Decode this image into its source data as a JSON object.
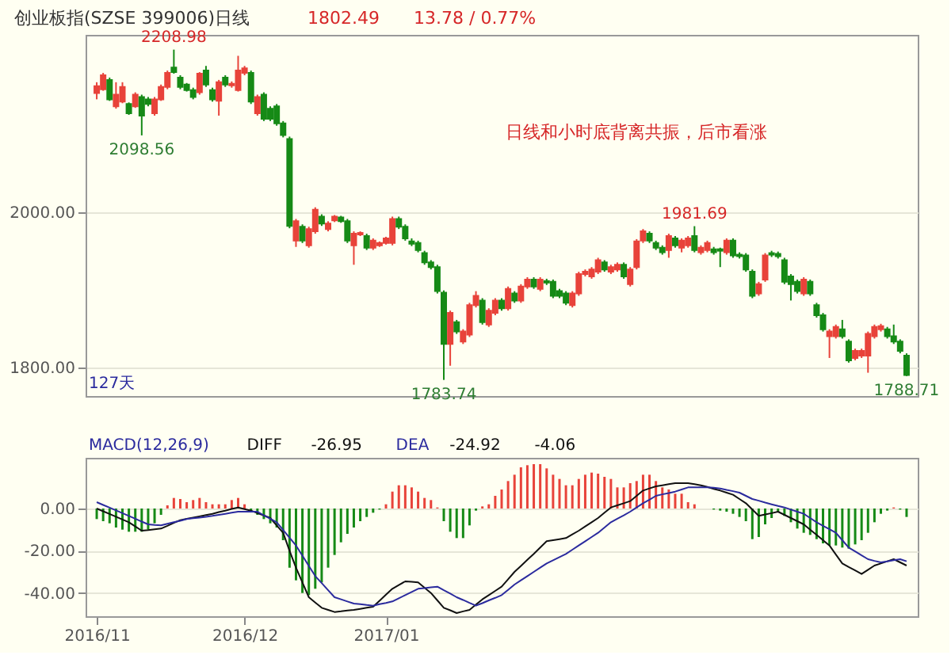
{
  "chart_data": [
    {
      "type": "candlestick",
      "title": "创业板指(SZSE 399006)日线",
      "categories": [
        null,
        null,
        null,
        null,
        null,
        null,
        null,
        null,
        null,
        null,
        null,
        null,
        null,
        null,
        null,
        null,
        null,
        null,
        null,
        null,
        null,
        null,
        null,
        null,
        null,
        null,
        null,
        null,
        null,
        null,
        null,
        null,
        null,
        null,
        null,
        null,
        null,
        null,
        null,
        null,
        null,
        null,
        null,
        null,
        null,
        null,
        null,
        null,
        null,
        null,
        null,
        null,
        null,
        null,
        null,
        null,
        null,
        null,
        null,
        null,
        null,
        null,
        null,
        null,
        null,
        null,
        null,
        null,
        null,
        null,
        null,
        null,
        null,
        null,
        null,
        null,
        null,
        null,
        null,
        null,
        null,
        null,
        null,
        null,
        null,
        null,
        null,
        null,
        null,
        null,
        null,
        null,
        null,
        null,
        null,
        null,
        null,
        null,
        null,
        null,
        null,
        null,
        null,
        null,
        null,
        null,
        null,
        null,
        null,
        null,
        null,
        null,
        null,
        null,
        null,
        null,
        null,
        null,
        null,
        null,
        null,
        null,
        null,
        null,
        null,
        null,
        null
      ],
      "ohlc": [
        [
          2153,
          2167,
          2145,
          2162
        ],
        [
          2158,
          2179,
          2156,
          2176
        ],
        [
          2170,
          2173,
          2143,
          2145
        ],
        [
          2136,
          2167,
          2133,
          2151
        ],
        [
          2142,
          2167,
          2140,
          2161
        ],
        [
          2139,
          2141,
          2125,
          2127
        ],
        [
          2136,
          2154,
          2134,
          2151
        ],
        [
          2148,
          2151,
          2098.56,
          2124
        ],
        [
          2145,
          2148,
          2136,
          2139
        ],
        [
          2127,
          2148,
          2124,
          2145
        ],
        [
          2145,
          2164,
          2143,
          2161
        ],
        [
          2161,
          2182,
          2158,
          2179
        ],
        [
          2186,
          2208.98,
          2178,
          2180
        ],
        [
          2173,
          2176,
          2158,
          2161
        ],
        [
          2164,
          2166,
          2155,
          2157
        ],
        [
          2157,
          2160,
          2145,
          2148
        ],
        [
          2154,
          2180,
          2151,
          2178
        ],
        [
          2182,
          2188,
          2161,
          2164
        ],
        [
          2157,
          2160,
          2142,
          2145
        ],
        [
          2143,
          2170,
          2124,
          2167
        ],
        [
          2173,
          2176,
          2161,
          2164
        ],
        [
          2163,
          2168,
          2160,
          2165
        ],
        [
          2157,
          2201,
          2155,
          2182
        ],
        [
          2179,
          2188,
          2176,
          2185
        ],
        [
          2179,
          2182,
          2139,
          2142
        ],
        [
          2127,
          2151,
          2124,
          2148
        ],
        [
          2151,
          2154,
          2117,
          2120
        ],
        [
          2133,
          2136,
          2117,
          2120
        ],
        [
          2136,
          2139,
          2111,
          2114
        ],
        [
          2114,
          2117,
          2096,
          2099
        ],
        [
          2094,
          2097,
          1979,
          1982
        ],
        [
          1963,
          1991,
          1955,
          1988
        ],
        [
          1981,
          1984,
          1960,
          1963
        ],
        [
          1957,
          1981,
          1954,
          1978
        ],
        [
          1975,
          2006,
          1972,
          2003
        ],
        [
          1994,
          1997,
          1982,
          1985
        ],
        [
          1978,
          1988,
          1975,
          1985
        ],
        [
          1989,
          1996,
          1987,
          1994
        ],
        [
          1993,
          1995,
          1986,
          1988
        ],
        [
          1988,
          1991,
          1960,
          1963
        ],
        [
          1957,
          1975,
          1932,
          1972
        ],
        [
          1971,
          1975,
          1969,
          1973
        ],
        [
          1969,
          1972,
          1951,
          1954
        ],
        [
          1954,
          1966,
          1951,
          1963
        ],
        [
          1957,
          1962,
          1955,
          1960
        ],
        [
          1960,
          1968,
          1958,
          1966
        ],
        [
          1960,
          1994,
          1957,
          1991
        ],
        [
          1991,
          1994,
          1978,
          1981
        ],
        [
          1981,
          1984,
          1963,
          1966
        ],
        [
          1962,
          1966,
          1956,
          1959
        ],
        [
          1960,
          1963,
          1948,
          1951
        ],
        [
          1947,
          1950,
          1932,
          1935
        ],
        [
          1935,
          1938,
          1926,
          1929
        ],
        [
          1929,
          1932,
          1895,
          1898
        ],
        [
          1896,
          1899,
          1783.74,
          1830
        ],
        [
          1830,
          1873,
          1802,
          1870
        ],
        [
          1858,
          1861,
          1843,
          1846
        ],
        [
          1833,
          1849,
          1830,
          1846
        ],
        [
          1842,
          1883,
          1839,
          1880
        ],
        [
          1880,
          1898,
          1877,
          1892
        ],
        [
          1886,
          1889,
          1855,
          1858
        ],
        [
          1855,
          1876,
          1852,
          1873
        ],
        [
          1870,
          1889,
          1867,
          1886
        ],
        [
          1886,
          1889,
          1873,
          1876
        ],
        [
          1876,
          1904,
          1873,
          1901
        ],
        [
          1895,
          1898,
          1883,
          1886
        ],
        [
          1886,
          1907,
          1883,
          1904
        ],
        [
          1904,
          1916,
          1901,
          1913
        ],
        [
          1913,
          1916,
          1901,
          1904
        ],
        [
          1901,
          1916,
          1898,
          1913
        ],
        [
          1911,
          1914,
          1906,
          1909
        ],
        [
          1910,
          1913,
          1889,
          1892
        ],
        [
          1898,
          1901,
          1889,
          1892
        ],
        [
          1895,
          1898,
          1880,
          1883
        ],
        [
          1880,
          1898,
          1877,
          1895
        ],
        [
          1895,
          1923,
          1892,
          1920
        ],
        [
          1920,
          1926,
          1917,
          1923
        ],
        [
          1917,
          1929,
          1914,
          1926
        ],
        [
          1923,
          1941,
          1920,
          1938
        ],
        [
          1935,
          1938,
          1923,
          1926
        ],
        [
          1923,
          1932,
          1920,
          1929
        ],
        [
          1926,
          1935,
          1923,
          1932
        ],
        [
          1932,
          1935,
          1914,
          1917
        ],
        [
          1907,
          1929,
          1904,
          1926
        ],
        [
          1929,
          1965,
          1926,
          1962
        ],
        [
          1963,
          1978,
          1960,
          1975
        ],
        [
          1972,
          1975,
          1960,
          1963
        ],
        [
          1960,
          1963,
          1951,
          1954
        ],
        [
          1954,
          1957,
          1945,
          1948
        ],
        [
          1951,
          1972,
          1941,
          1969
        ],
        [
          1966,
          1969,
          1954,
          1957
        ],
        [
          1954,
          1966,
          1948,
          1963
        ],
        [
          1957,
          1969,
          1954,
          1966
        ],
        [
          1969,
          1981.69,
          1948,
          1951
        ],
        [
          1948,
          1957,
          1945,
          1954
        ],
        [
          1951,
          1963,
          1948,
          1960
        ],
        [
          1952,
          1955,
          1945,
          1948
        ],
        [
          1952,
          1954,
          1929,
          1950
        ],
        [
          1948,
          1966,
          1945,
          1963
        ],
        [
          1963,
          1966,
          1941,
          1944
        ],
        [
          1945,
          1948,
          1940,
          1943
        ],
        [
          1944,
          1947,
          1923,
          1926
        ],
        [
          1923,
          1926,
          1889,
          1892
        ],
        [
          1895,
          1910,
          1892,
          1907
        ],
        [
          1913,
          1947,
          1910,
          1944
        ],
        [
          1947,
          1950,
          1942,
          1945
        ],
        [
          1946,
          1949,
          1940,
          1943
        ],
        [
          1938,
          1941,
          1907,
          1910
        ],
        [
          1917,
          1920,
          1886,
          1907
        ],
        [
          1910,
          1913,
          1895,
          1898
        ],
        [
          1895,
          1916,
          1892,
          1913
        ],
        [
          1910,
          1913,
          1892,
          1895
        ],
        [
          1880,
          1883,
          1864,
          1867
        ],
        [
          1867,
          1870,
          1846,
          1849
        ],
        [
          1840,
          1849,
          1812,
          1846
        ],
        [
          1840,
          1855,
          1837,
          1852
        ],
        [
          1849,
          1861,
          1837,
          1840
        ],
        [
          1833,
          1836,
          1806,
          1809
        ],
        [
          1812,
          1824,
          1809,
          1821
        ],
        [
          1815,
          1824,
          1812,
          1821
        ],
        [
          1815,
          1846,
          1793,
          1843
        ],
        [
          1840,
          1855,
          1837,
          1852
        ],
        [
          1849,
          1856,
          1846,
          1853
        ],
        [
          1849,
          1852,
          1837,
          1840
        ],
        [
          1840,
          1855,
          1830,
          1833
        ],
        [
          1833,
          1836,
          1818,
          1821
        ],
        [
          1815,
          1818,
          1788.71,
          1790
        ]
      ],
      "colors": [
        "#e8433a",
        "#e8433a",
        "#168a16",
        "#e8433a",
        "#e8433a",
        "#168a16",
        "#e8433a",
        "#168a16",
        "#168a16",
        "#e8433a",
        "#e8433a",
        "#e8433a",
        "#168a16",
        "#168a16",
        "#168a16",
        "#168a16",
        "#e8433a",
        "#168a16",
        "#168a16",
        "#e8433a",
        "#168a16",
        "#e8433a",
        "#e8433a",
        "#e8433a",
        "#168a16",
        "#e8433a",
        "#168a16",
        "#168a16",
        "#168a16",
        "#168a16",
        "#168a16",
        "#e8433a",
        "#168a16",
        "#e8433a",
        "#e8433a",
        "#168a16",
        "#e8433a",
        "#e8433a",
        "#168a16",
        "#168a16",
        "#e8433a",
        "#e8433a",
        "#168a16",
        "#e8433a",
        "#e8433a",
        "#e8433a",
        "#e8433a",
        "#168a16",
        "#168a16",
        "#168a16",
        "#168a16",
        "#168a16",
        "#168a16",
        "#168a16",
        "#168a16",
        "#e8433a",
        "#168a16",
        "#e8433a",
        "#e8433a",
        "#e8433a",
        "#168a16",
        "#e8433a",
        "#e8433a",
        "#168a16",
        "#e8433a",
        "#168a16",
        "#e8433a",
        "#e8433a",
        "#168a16",
        "#e8433a",
        "#168a16",
        "#168a16",
        "#168a16",
        "#168a16",
        "#e8433a",
        "#e8433a",
        "#e8433a",
        "#e8433a",
        "#e8433a",
        "#168a16",
        "#e8433a",
        "#e8433a",
        "#168a16",
        "#e8433a",
        "#e8433a",
        "#e8433a",
        "#168a16",
        "#168a16",
        "#168a16",
        "#e8433a",
        "#168a16",
        "#e8433a",
        "#e8433a",
        "#168a16",
        "#e8433a",
        "#e8433a",
        "#168a16",
        "#168a16",
        "#e8433a",
        "#168a16",
        "#168a16",
        "#168a16",
        "#168a16",
        "#e8433a",
        "#e8433a",
        "#168a16",
        "#168a16",
        "#168a16",
        "#168a16",
        "#168a16",
        "#e8433a",
        "#168a16",
        "#168a16",
        "#168a16",
        "#e8433a",
        "#e8433a",
        "#168a16",
        "#168a16",
        "#e8433a",
        "#e8433a",
        "#e8433a",
        "#e8433a",
        "#e8433a",
        "#168a16",
        "#168a16",
        "#168a16",
        "#168a16"
      ],
      "ylim": [
        1763,
        2228
      ],
      "yticks": [
        {
          "value": 1800,
          "label": "1800.00"
        },
        {
          "value": 2000,
          "label": "2000.00"
        }
      ],
      "grid": "y",
      "tick_labels": "y",
      "annotations": [
        {
          "text": "2208.98",
          "y": 2208.98
        },
        {
          "text": "2098.56",
          "y": 2098.56
        },
        {
          "text": "1783.74",
          "y": 1783.74
        },
        {
          "text": "1981.69",
          "y": 1981.69
        },
        {
          "text": "1788.71",
          "y": 1788.71
        },
        "1802.49",
        "13.78 / 0.77%",
        "日线和小时底背离共振，后市看涨",
        "127天"
      ]
    },
    {
      "type": "bar",
      "categories": [
        "2016/11",
        null,
        null,
        null,
        null,
        null,
        null,
        null,
        null,
        null,
        null,
        null,
        null,
        null,
        null,
        null,
        null,
        null,
        null,
        null,
        null,
        null,
        null,
        "2016/12",
        null,
        null,
        null,
        null,
        null,
        null,
        null,
        null,
        null,
        null,
        null,
        null,
        null,
        null,
        null,
        null,
        null,
        null,
        null,
        null,
        null,
        "2017/01",
        null,
        null,
        null,
        null,
        null,
        null,
        null,
        null,
        null,
        null,
        null,
        null,
        null,
        null,
        null,
        null,
        null,
        null,
        null,
        null,
        null,
        null,
        null,
        null,
        null,
        null,
        null,
        null,
        null,
        null,
        null,
        null,
        null,
        null,
        null,
        null,
        null,
        null,
        null,
        null,
        null,
        null,
        null,
        null,
        null,
        null,
        null,
        null,
        null,
        null,
        null,
        null,
        null,
        null,
        null,
        null,
        null,
        null,
        null,
        null,
        null,
        null,
        null,
        null,
        null,
        null,
        null,
        null,
        null,
        null,
        null,
        null,
        null,
        null,
        null,
        null,
        null,
        null,
        null,
        null,
        null
      ],
      "series": [
        {
          "type": "bar",
          "values": [
            -5,
            -6,
            -7,
            -9,
            -10,
            -11,
            -11,
            -11,
            -10,
            -7,
            -3,
            1.5,
            5,
            4.5,
            3,
            4,
            5,
            3,
            2,
            2,
            2,
            4,
            5,
            2,
            -1,
            -3,
            -5,
            -7,
            -9,
            -15,
            -28,
            -34,
            -40,
            -41,
            -38,
            -35,
            -28,
            -22,
            -16,
            -12,
            -9,
            -6,
            -4,
            -2,
            -0.5,
            2,
            8,
            11,
            11,
            10,
            8,
            5,
            4,
            0.5,
            -6,
            -11,
            -14,
            -14,
            -8,
            -1,
            1,
            2,
            6,
            9,
            13,
            16,
            19.5,
            20.5,
            21,
            21,
            19,
            16,
            14,
            11,
            11,
            14,
            16,
            17,
            16.5,
            15,
            14,
            10,
            10,
            12,
            13,
            16,
            16,
            13,
            10,
            9,
            7,
            7,
            3,
            2,
            null,
            null,
            -0.5,
            -1,
            -1.5,
            -2.5,
            -4,
            -6,
            -14.5,
            -13.5,
            -7.5,
            -4.5,
            -1.5,
            -3.5,
            -6.5,
            -9.5,
            -11.5,
            -12.5,
            -14.5,
            -16.5,
            -17.5,
            -17.5,
            -18.5,
            -19,
            -17,
            -15,
            -11.5,
            -6.5,
            -2.5,
            -1,
            0.5,
            -0.5,
            -4
          ],
          "colors": [
            "#168a16",
            "#168a16",
            "#168a16",
            "#168a16",
            "#168a16",
            "#168a16",
            "#168a16",
            "#168a16",
            "#168a16",
            "#168a16",
            "#168a16",
            "#e8433a",
            "#e8433a",
            "#e8433a",
            "#e8433a",
            "#e8433a",
            "#e8433a",
            "#e8433a",
            "#e8433a",
            "#e8433a",
            "#e8433a",
            "#e8433a",
            "#e8433a",
            "#e8433a",
            "#168a16",
            "#168a16",
            "#168a16",
            "#168a16",
            "#168a16",
            "#168a16",
            "#168a16",
            "#168a16",
            "#168a16",
            "#168a16",
            "#168a16",
            "#168a16",
            "#168a16",
            "#168a16",
            "#168a16",
            "#168a16",
            "#168a16",
            "#168a16",
            "#168a16",
            "#168a16",
            "#168a16",
            "#e8433a",
            "#e8433a",
            "#e8433a",
            "#e8433a",
            "#e8433a",
            "#e8433a",
            "#e8433a",
            "#e8433a",
            "#e8433a",
            "#168a16",
            "#168a16",
            "#168a16",
            "#168a16",
            "#168a16",
            "#168a16",
            "#e8433a",
            "#e8433a",
            "#e8433a",
            "#e8433a",
            "#e8433a",
            "#e8433a",
            "#e8433a",
            "#e8433a",
            "#e8433a",
            "#e8433a",
            "#e8433a",
            "#e8433a",
            "#e8433a",
            "#e8433a",
            "#e8433a",
            "#e8433a",
            "#e8433a",
            "#e8433a",
            "#e8433a",
            "#e8433a",
            "#e8433a",
            "#e8433a",
            "#e8433a",
            "#e8433a",
            "#e8433a",
            "#e8433a",
            "#e8433a",
            "#e8433a",
            "#e8433a",
            "#e8433a",
            "#e8433a",
            "#e8433a",
            "#e8433a",
            "#e8433a",
            "#e8433a",
            "#168a16",
            "#168a16",
            "#168a16",
            "#168a16",
            "#168a16",
            "#168a16",
            "#168a16",
            "#168a16",
            "#168a16",
            "#168a16",
            "#168a16",
            "#168a16",
            "#168a16",
            "#168a16",
            "#168a16",
            "#168a16",
            "#168a16",
            "#168a16",
            "#168a16",
            "#168a16",
            "#168a16",
            "#168a16",
            "#168a16",
            "#168a16",
            "#168a16",
            "#168a16",
            "#168a16",
            "#168a16",
            "#168a16",
            "#e8433a",
            "#168a16",
            "#168a16"
          ]
        },
        {
          "type": "line",
          "name": "DIFF",
          "color": "#111111",
          "values": [
            0,
            -1.3,
            -2.6,
            -3.9,
            -5.2,
            -6.5,
            -8.5,
            -10.5,
            -10.2,
            -9.8,
            -9.5,
            -8.2,
            -6.8,
            -5.5,
            -4.9,
            -4.3,
            -3.7,
            -3.1,
            -2.5,
            -1.7,
            -1,
            -0.2,
            0.5,
            -0.3,
            -1,
            -2.2,
            -3.3,
            -4.5,
            -8,
            -11.5,
            -20,
            -28,
            -35,
            -42,
            -44.5,
            -47,
            -48,
            -49,
            -48.7,
            -48.3,
            -48,
            -47.5,
            -47,
            -46.5,
            -43.7,
            -40.8,
            -38,
            -36.2,
            -34.5,
            -34.7,
            -35,
            -37.5,
            -40,
            -43.5,
            -47,
            -48.2,
            -49.5,
            -48.7,
            -48,
            -45.5,
            -43,
            -41,
            -39,
            -37,
            -33.5,
            -30,
            -27.2,
            -24.3,
            -21.5,
            -18.5,
            -15.5,
            -15,
            -14.5,
            -14,
            -12.2,
            -10.5,
            -8.5,
            -6.5,
            -4.5,
            -2,
            0.5,
            1.5,
            2.5,
            3.5,
            6,
            8.5,
            9.5,
            10.5,
            11,
            11.5,
            12,
            12,
            12,
            11.5,
            11,
            10.2,
            9.3,
            8.5,
            7.5,
            6.5,
            4.5,
            2.5,
            -0.5,
            -3.5,
            -2.8,
            -2.2,
            -1.5,
            -3,
            -4.5,
            -6,
            -7.5,
            -10,
            -12.5,
            -15,
            -17.5,
            -21.8,
            -26,
            -27.7,
            -29.3,
            -31,
            -29,
            -27,
            -26,
            -25,
            -24,
            -25.5,
            -27
          ]
        },
        {
          "type": "line",
          "name": "DEA",
          "color": "#2b2b9e",
          "values": [
            3,
            1.7,
            0.4,
            -0.9,
            -2.2,
            -3.5,
            -4.8,
            -6.2,
            -7.5,
            -7.8,
            -8,
            -7.2,
            -6.5,
            -5.8,
            -5,
            -4.6,
            -4.3,
            -3.9,
            -3.5,
            -3,
            -2.5,
            -2,
            -1.5,
            -1.5,
            -1.5,
            -1.5,
            -3.2,
            -4.8,
            -6.5,
            -10.2,
            -13.8,
            -17.5,
            -22.3,
            -27.2,
            -32,
            -35.3,
            -38.7,
            -42,
            -43,
            -44,
            -45,
            -45.3,
            -45.7,
            -46,
            -45.3,
            -44.7,
            -44,
            -42.5,
            -41,
            -39.5,
            -38,
            -37.7,
            -37.3,
            -37,
            -38.7,
            -40.3,
            -42,
            -43.3,
            -44.7,
            -46,
            -44.8,
            -43.5,
            -42.3,
            -41,
            -38.5,
            -36,
            -34,
            -32,
            -30,
            -28,
            -26,
            -24.5,
            -23,
            -21.5,
            -19.5,
            -17.5,
            -15.5,
            -13.5,
            -11.5,
            -9,
            -6.5,
            -4.8,
            -3.2,
            -1.5,
            0.5,
            2.5,
            4.2,
            6,
            6.7,
            7.3,
            8,
            9,
            10,
            10,
            10,
            10,
            9.8,
            9.5,
            8.8,
            8.2,
            7.5,
            6,
            4.5,
            3.7,
            2.8,
            2,
            1.2,
            0.5,
            -0.5,
            -1.5,
            -2.5,
            -4.5,
            -6.5,
            -8.2,
            -9.8,
            -11.5,
            -15,
            -18.5,
            -20.3,
            -22.2,
            -24,
            -24.8,
            -25.5,
            -25,
            -24.5,
            -24,
            -25
          ]
        }
      ],
      "ylim": [
        -51,
        24
      ],
      "yticks": [
        {
          "value": -40,
          "label": "-40.00"
        },
        {
          "value": -20,
          "label": "-20.00"
        },
        {
          "value": 0,
          "label": "0.00"
        }
      ],
      "grid": "y",
      "annotations": [
        "MACD(12,26,9)",
        "-26.95",
        "-24.92",
        "-4.06"
      ]
    }
  ]
}
